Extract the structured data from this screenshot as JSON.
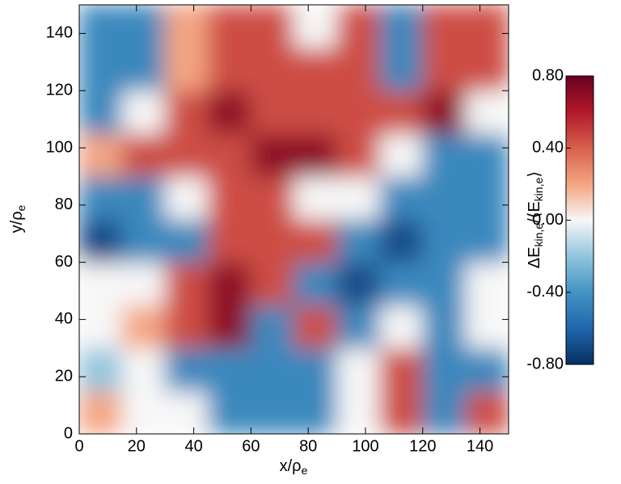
{
  "chart_data": {
    "type": "heatmap",
    "xlabel": {
      "text": "x/ρ",
      "sub": "e"
    },
    "ylabel": {
      "text": "y/ρ",
      "sub": "e"
    },
    "colorbar_label": {
      "text": "ΔE",
      "sub": "kin,e",
      "mid": "/⟨E",
      "sub2": "kin,e",
      "end": "⟩"
    },
    "xlim": [
      0,
      150
    ],
    "ylim": [
      0,
      150
    ],
    "xticks": [
      0,
      20,
      40,
      60,
      80,
      100,
      120,
      140
    ],
    "yticks": [
      0,
      20,
      40,
      60,
      80,
      100,
      120,
      140
    ],
    "xbins": [
      0,
      15,
      30,
      45,
      60,
      75,
      90,
      105,
      120,
      135,
      150
    ],
    "ybins": [
      0,
      15,
      30,
      45,
      60,
      75,
      90,
      105,
      120,
      135,
      150
    ],
    "z": [
      [
        0.2,
        0,
        0,
        -0.45,
        -0.45,
        -0.45,
        0,
        0.45,
        -0.45,
        0.45
      ],
      [
        -0.2,
        0,
        -0.45,
        -0.45,
        -0.45,
        -0.45,
        0,
        0.45,
        -0.45,
        -0.45
      ],
      [
        0,
        0.2,
        0.45,
        0.7,
        -0.45,
        0.45,
        -0.45,
        0,
        -0.45,
        0
      ],
      [
        0,
        0,
        0.45,
        0.7,
        0.45,
        -0.45,
        -0.7,
        -0.45,
        -0.45,
        0
      ],
      [
        -0.7,
        -0.45,
        -0.45,
        0.45,
        0.45,
        0.45,
        -0.45,
        -0.7,
        -0.45,
        -0.45
      ],
      [
        -0.45,
        -0.45,
        0,
        0.45,
        0.45,
        0,
        0,
        -0.45,
        -0.45,
        -0.45
      ],
      [
        0.2,
        0.45,
        0.45,
        0.45,
        0.7,
        0.7,
        0.45,
        0,
        -0.45,
        -0.45
      ],
      [
        -0.45,
        0,
        0.45,
        0.7,
        0.45,
        0.45,
        0.45,
        0.45,
        0.7,
        0
      ],
      [
        -0.45,
        -0.45,
        0.2,
        0.45,
        0.45,
        0.45,
        0.45,
        -0.45,
        0.45,
        0.45
      ],
      [
        -0.45,
        -0.45,
        0.2,
        0.45,
        0.45,
        0,
        0.45,
        -0.45,
        0.45,
        0.45
      ]
    ],
    "zlim": [
      -0.8,
      0.8
    ],
    "zticks": [
      {
        "value": 0.8,
        "label": "0.80"
      },
      {
        "value": 0.4,
        "label": "0.40"
      },
      {
        "value": 0,
        "label": "0.00"
      },
      {
        "value": -0.4,
        "label": "-0.40"
      },
      {
        "value": -0.8,
        "label": "-0.80"
      }
    ],
    "colorscale": [
      "#053061",
      "#2166ac",
      "#4393c3",
      "#92c5de",
      "#f7f7f7",
      "#f4a582",
      "#d6604d",
      "#b2182b",
      "#67001f"
    ]
  }
}
